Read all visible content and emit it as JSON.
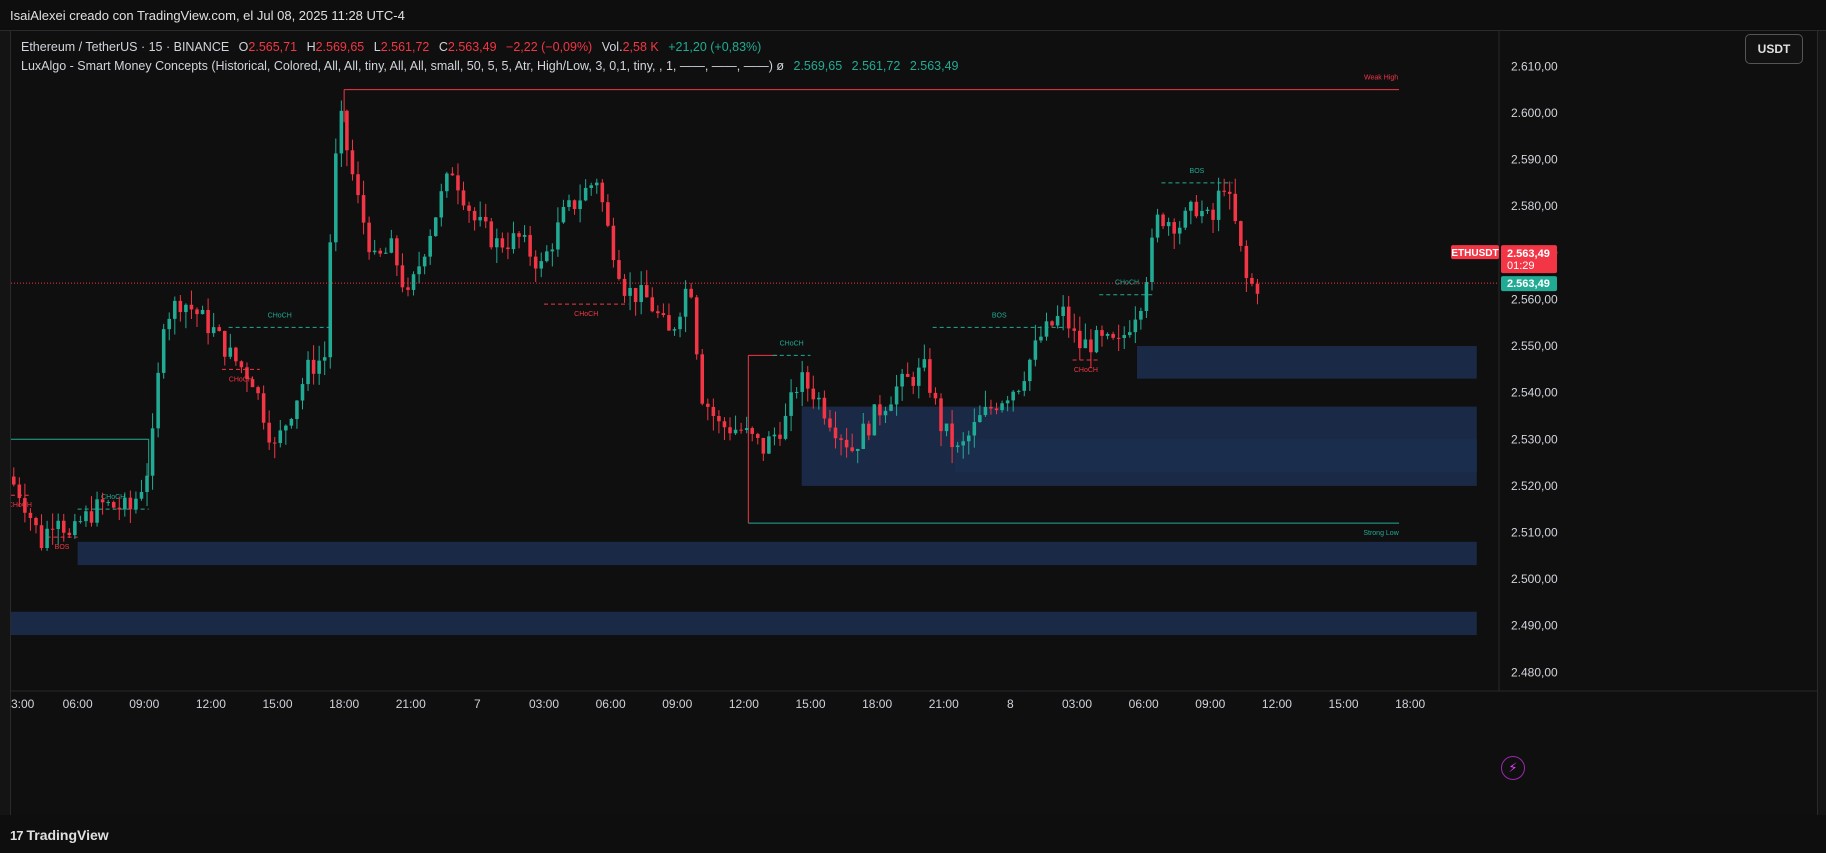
{
  "header": {
    "title": "IsaiAlexei creado con TradingView.com, el Jul 08, 2025 11:28 UTC-4"
  },
  "legend": {
    "symbol": "Ethereum / TetherUS · 15 · BINANCE",
    "o_label": "O",
    "o_value": "2.565,71",
    "h_label": "H",
    "h_value": "2.569,65",
    "l_label": "L",
    "l_value": "2.561,72",
    "c_label": "C",
    "c_value": "2.563,49",
    "change": "−2,22 (−0,09%)",
    "vol_label": "Vol.",
    "vol_value": "2,58 K",
    "vol_change": "+21,20 (+0,83%)",
    "indicator": "LuxAlgo - Smart Money Concepts (Historical, Colored, All, All, tiny, All, All, small, 50, 5, 5, Atr, High/Low, 3, 0,1, tiny, , 1, ——, ——, ——)  ø",
    "ind_v1": "2.569,65",
    "ind_v2": "2.561,72",
    "ind_v3": "2.563,49"
  },
  "currency_button": "USDT",
  "footer": {
    "brand": "TradingView",
    "brand_mark": "17"
  },
  "chart_data": {
    "type": "candlestick",
    "symbol": "ETHUSDT",
    "timeframe": "15",
    "price_scale": {
      "ticks": [
        2480,
        2490,
        2500,
        2510,
        2520,
        2530,
        2540,
        2550,
        2560,
        2570,
        2580,
        2590,
        2600,
        2610
      ],
      "tick_labels": [
        "2.480,00",
        "2.490,00",
        "2.500,00",
        "2.510,00",
        "2.520,00",
        "2.530,00",
        "2.540,00",
        "2.550,00",
        "2.560,00",
        "2.570,00",
        "2.580,00",
        "2.590,00",
        "2.600,00",
        "2.610,00"
      ],
      "range": [
        2476,
        2615
      ]
    },
    "time_axis": {
      "labels": [
        "3:00",
        "06:00",
        "09:00",
        "12:00",
        "15:00",
        "18:00",
        "21:00",
        "7",
        "03:00",
        "06:00",
        "09:00",
        "12:00",
        "15:00",
        "18:00",
        "21:00",
        "8",
        "03:00",
        "06:00",
        "09:00",
        "12:00",
        "15:00",
        "18:00"
      ],
      "hours": [
        3,
        6,
        9,
        12,
        15,
        18,
        21,
        24,
        27,
        30,
        33,
        36,
        39,
        42,
        45,
        48,
        51,
        54,
        57,
        60,
        63,
        66
      ],
      "range_hours": [
        3,
        70
      ]
    },
    "current_price": {
      "symbol_label": "ETHUSDT",
      "price": 2563.49,
      "price_label": "2.563,49",
      "countdown": "01:29",
      "bid_label": "2.563,49"
    },
    "colors": {
      "up": "#22ab94",
      "down": "#f23645",
      "zone": "#1c2e4f"
    },
    "price_path": [
      [
        3.0,
        2522
      ],
      [
        3.6,
        2518
      ],
      [
        4.5,
        2508
      ],
      [
        5.2,
        2515
      ],
      [
        5.8,
        2508
      ],
      [
        6.2,
        2512
      ],
      [
        7.2,
        2516
      ],
      [
        8.5,
        2515
      ],
      [
        9.2,
        2522
      ],
      [
        9.5,
        2530
      ],
      [
        10.0,
        2556
      ],
      [
        10.8,
        2560
      ],
      [
        11.5,
        2557
      ],
      [
        12.3,
        2553
      ],
      [
        13.0,
        2548
      ],
      [
        14.0,
        2543
      ],
      [
        15.0,
        2528
      ],
      [
        15.8,
        2537
      ],
      [
        16.5,
        2545
      ],
      [
        17.3,
        2548
      ],
      [
        17.6,
        2585
      ],
      [
        18.0,
        2598
      ],
      [
        18.7,
        2582
      ],
      [
        19.5,
        2568
      ],
      [
        20.3,
        2571
      ],
      [
        21.0,
        2560
      ],
      [
        21.8,
        2572
      ],
      [
        22.5,
        2582
      ],
      [
        23.0,
        2588
      ],
      [
        24.0,
        2577
      ],
      [
        25.0,
        2572
      ],
      [
        26.0,
        2573
      ],
      [
        27.0,
        2567
      ],
      [
        28.0,
        2578
      ],
      [
        29.5,
        2586
      ],
      [
        30.0,
        2575
      ],
      [
        30.8,
        2562
      ],
      [
        31.8,
        2560
      ],
      [
        32.8,
        2552
      ],
      [
        33.7,
        2565
      ],
      [
        34.2,
        2540
      ],
      [
        35.0,
        2533
      ],
      [
        36.0,
        2532
      ],
      [
        37.0,
        2528
      ],
      [
        38.0,
        2534
      ],
      [
        38.6,
        2543
      ],
      [
        39.3,
        2540
      ],
      [
        40.2,
        2533
      ],
      [
        41.0,
        2528
      ],
      [
        42.0,
        2535
      ],
      [
        43.0,
        2541
      ],
      [
        44.3,
        2545
      ],
      [
        45.0,
        2533
      ],
      [
        45.8,
        2527
      ],
      [
        46.7,
        2534
      ],
      [
        47.5,
        2538
      ],
      [
        48.5,
        2542
      ],
      [
        49.5,
        2552
      ],
      [
        50.5,
        2557
      ],
      [
        51.2,
        2550
      ],
      [
        52.0,
        2551
      ],
      [
        53.0,
        2550
      ],
      [
        54.0,
        2560
      ],
      [
        54.8,
        2578
      ],
      [
        55.8,
        2576
      ],
      [
        56.5,
        2580
      ],
      [
        57.2,
        2576
      ],
      [
        57.7,
        2586
      ],
      [
        58.3,
        2575
      ],
      [
        58.8,
        2563
      ],
      [
        59.2,
        2563
      ]
    ],
    "zones": [
      {
        "from_h": 3.0,
        "to_h": 69.0,
        "low": 2488,
        "high": 2493
      },
      {
        "from_h": 6.0,
        "to_h": 69.0,
        "low": 2503,
        "high": 2508
      },
      {
        "from_h": 38.6,
        "to_h": 69.0,
        "low": 2520,
        "high": 2537
      },
      {
        "from_h": 45.5,
        "to_h": 69.0,
        "low": 2523,
        "high": 2530
      },
      {
        "from_h": 53.7,
        "to_h": 69.0,
        "low": 2543,
        "high": 2550
      }
    ],
    "levels": [
      {
        "label": "Weak High",
        "price": 2605,
        "from_h": 18.0,
        "to_h": 65.5,
        "color": "#f23645"
      },
      {
        "label": "Strong Low",
        "price": 2512,
        "from_h": 36.2,
        "to_h": 65.5,
        "color": "#22ab94"
      }
    ],
    "structure": [
      {
        "label": "CHoCH",
        "price": 2515,
        "from_h": 6.0,
        "to_h": 9.2,
        "color": "#22ab94"
      },
      {
        "label": "CHoCH",
        "price": 2518,
        "from_h": 3.0,
        "to_h": 3.8,
        "color": "#f23645"
      },
      {
        "label": "BOS",
        "price": 2509,
        "from_h": 4.6,
        "to_h": 6.0,
        "color": "#f23645"
      },
      {
        "label": "CHoCH",
        "price": 2554,
        "from_h": 12.8,
        "to_h": 17.4,
        "color": "#22ab94"
      },
      {
        "label": "CHoCH",
        "price": 2545,
        "from_h": 12.5,
        "to_h": 14.2,
        "color": "#f23645"
      },
      {
        "label": "CHoCH",
        "price": 2559,
        "from_h": 27.0,
        "to_h": 30.8,
        "color": "#f23645"
      },
      {
        "label": "CHoCH",
        "price": 2548,
        "from_h": 37.3,
        "to_h": 39.0,
        "color": "#22ab94"
      },
      {
        "label": "BOS",
        "price": 2554,
        "from_h": 44.5,
        "to_h": 50.5,
        "color": "#22ab94"
      },
      {
        "label": "CHoCH",
        "price": 2547,
        "from_h": 50.8,
        "to_h": 52.0,
        "color": "#f23645"
      },
      {
        "label": "CHoCH",
        "price": 2561,
        "from_h": 52.0,
        "to_h": 54.5,
        "color": "#22ab94"
      },
      {
        "label": "BOS",
        "price": 2585,
        "from_h": 54.8,
        "to_h": 58.0,
        "color": "#22ab94"
      }
    ],
    "bos_top_line": {
      "price": 2530,
      "from_h": 3.0,
      "to_h": 9.2
    },
    "vertical_marker": {
      "h": 36.2,
      "from_price": 2512,
      "to_price": 2548
    }
  }
}
